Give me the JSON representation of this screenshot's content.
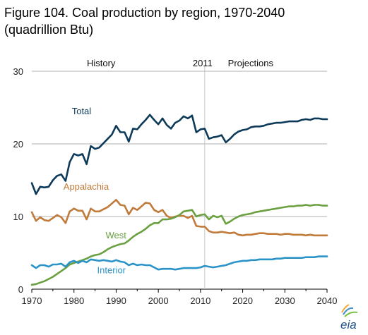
{
  "title_line1": "Figure 104. Coal production by region, 1970-2040",
  "title_line2": "(quadrillion Btu)",
  "logo_text": "eia",
  "colors": {
    "total": "#0e3a5a",
    "appalachia": "#c07a3a",
    "west": "#6aa040",
    "interior": "#2a93c8",
    "axis": "#000000",
    "grid": "#b0b0b0",
    "divider": "#c8c8c8"
  },
  "chart_data": {
    "type": "line",
    "title": "Figure 104. Coal production by region, 1970-2040",
    "xlabel": "",
    "ylabel": "",
    "xlim": [
      1970,
      2040
    ],
    "ylim": [
      0,
      30
    ],
    "xticks": [
      1970,
      1980,
      1990,
      2000,
      2010,
      2020,
      2030,
      2040
    ],
    "yticks": [
      0,
      10,
      20,
      30
    ],
    "grid": "horizontal",
    "annotations": {
      "history": "History",
      "divider_year": "2011",
      "projections": "Projections",
      "divider_x": 2011
    },
    "series": [
      {
        "name": "Total",
        "key": "total",
        "label_pos": [
          1979.5,
          24.1
        ],
        "x": [
          1970,
          1971,
          1972,
          1973,
          1974,
          1975,
          1976,
          1977,
          1978,
          1979,
          1980,
          1981,
          1982,
          1983,
          1984,
          1985,
          1986,
          1987,
          1988,
          1989,
          1990,
          1991,
          1992,
          1993,
          1994,
          1995,
          1996,
          1997,
          1998,
          1999,
          2000,
          2001,
          2002,
          2003,
          2004,
          2005,
          2006,
          2007,
          2008,
          2009,
          2010,
          2011,
          2012,
          2013,
          2014,
          2015,
          2016,
          2017,
          2018,
          2019,
          2020,
          2021,
          2022,
          2023,
          2024,
          2025,
          2026,
          2027,
          2028,
          2029,
          2030,
          2031,
          2032,
          2033,
          2034,
          2035,
          2036,
          2037,
          2038,
          2039,
          2040
        ],
        "values": [
          14.6,
          13.1,
          14.1,
          14.0,
          14.1,
          15.0,
          15.6,
          15.8,
          14.9,
          17.5,
          18.6,
          18.4,
          18.6,
          17.2,
          19.7,
          19.3,
          19.5,
          20.1,
          20.7,
          21.3,
          22.5,
          21.6,
          21.6,
          20.3,
          22.1,
          22.0,
          22.7,
          23.3,
          24.0,
          23.3,
          22.7,
          23.5,
          22.6,
          22.1,
          22.9,
          23.2,
          23.8,
          23.5,
          23.9,
          21.6,
          22.0,
          22.1,
          20.7,
          20.9,
          21.0,
          21.2,
          20.2,
          20.7,
          21.3,
          21.7,
          21.9,
          22.0,
          22.3,
          22.4,
          22.4,
          22.5,
          22.7,
          22.8,
          22.9,
          22.9,
          23.0,
          23.1,
          23.1,
          23.1,
          23.3,
          23.4,
          23.3,
          23.5,
          23.5,
          23.4,
          23.4
        ]
      },
      {
        "name": "Appalachia",
        "key": "appalachia",
        "label_pos": [
          1977.5,
          13.7
        ],
        "x": [
          1970,
          1971,
          1972,
          1973,
          1974,
          1975,
          1976,
          1977,
          1978,
          1979,
          1980,
          1981,
          1982,
          1983,
          1984,
          1985,
          1986,
          1987,
          1988,
          1989,
          1990,
          1991,
          1992,
          1993,
          1994,
          1995,
          1996,
          1997,
          1998,
          1999,
          2000,
          2001,
          2002,
          2003,
          2004,
          2005,
          2006,
          2007,
          2008,
          2009,
          2010,
          2011,
          2012,
          2013,
          2014,
          2015,
          2016,
          2017,
          2018,
          2019,
          2020,
          2021,
          2022,
          2023,
          2024,
          2025,
          2026,
          2027,
          2028,
          2029,
          2030,
          2031,
          2032,
          2033,
          2034,
          2035,
          2036,
          2037,
          2038,
          2039,
          2040
        ],
        "values": [
          10.6,
          9.4,
          9.9,
          9.5,
          9.4,
          9.8,
          10.2,
          9.9,
          9.1,
          10.7,
          11.1,
          10.8,
          10.8,
          9.6,
          11.1,
          10.7,
          10.7,
          11.0,
          11.3,
          11.8,
          12.3,
          11.6,
          11.5,
          10.3,
          11.2,
          10.9,
          11.4,
          11.9,
          11.8,
          10.9,
          10.6,
          10.9,
          10.1,
          9.8,
          10.0,
          10.1,
          10.1,
          9.8,
          10.1,
          8.7,
          8.6,
          8.6,
          8.0,
          7.8,
          7.8,
          7.9,
          7.8,
          7.7,
          7.8,
          7.5,
          7.4,
          7.5,
          7.5,
          7.6,
          7.7,
          7.7,
          7.6,
          7.6,
          7.6,
          7.5,
          7.6,
          7.6,
          7.5,
          7.5,
          7.5,
          7.4,
          7.5,
          7.4,
          7.4,
          7.4,
          7.4
        ]
      },
      {
        "name": "West",
        "key": "west",
        "label_pos": [
          1987.5,
          7.0
        ],
        "x": [
          1970,
          1971,
          1972,
          1973,
          1974,
          1975,
          1976,
          1977,
          1978,
          1979,
          1980,
          1981,
          1982,
          1983,
          1984,
          1985,
          1986,
          1987,
          1988,
          1989,
          1990,
          1991,
          1992,
          1993,
          1994,
          1995,
          1996,
          1997,
          1998,
          1999,
          2000,
          2001,
          2002,
          2003,
          2004,
          2005,
          2006,
          2007,
          2008,
          2009,
          2010,
          2011,
          2012,
          2013,
          2014,
          2015,
          2016,
          2017,
          2018,
          2019,
          2020,
          2021,
          2022,
          2023,
          2024,
          2025,
          2026,
          2027,
          2028,
          2029,
          2030,
          2031,
          2032,
          2033,
          2034,
          2035,
          2036,
          2037,
          2038,
          2039,
          2040
        ],
        "values": [
          0.6,
          0.7,
          0.9,
          1.1,
          1.4,
          1.7,
          2.1,
          2.5,
          2.9,
          3.4,
          3.6,
          3.8,
          4.0,
          4.2,
          4.5,
          4.7,
          4.8,
          5.1,
          5.5,
          5.8,
          6.0,
          6.2,
          6.3,
          6.7,
          7.2,
          7.6,
          7.9,
          8.3,
          8.8,
          9.1,
          9.1,
          9.6,
          9.6,
          9.7,
          9.9,
          10.2,
          10.7,
          10.8,
          10.9,
          10.0,
          10.2,
          10.3,
          9.6,
          10.1,
          9.9,
          10.1,
          9.0,
          9.3,
          9.7,
          10.0,
          10.2,
          10.3,
          10.4,
          10.6,
          10.7,
          10.8,
          10.9,
          11.0,
          11.1,
          11.2,
          11.3,
          11.4,
          11.4,
          11.5,
          11.5,
          11.6,
          11.5,
          11.6,
          11.6,
          11.5,
          11.5
        ]
      },
      {
        "name": "Interior",
        "key": "interior",
        "label_pos": [
          1985.5,
          2.2
        ],
        "x": [
          1970,
          1971,
          1972,
          1973,
          1974,
          1975,
          1976,
          1977,
          1978,
          1979,
          1980,
          1981,
          1982,
          1983,
          1984,
          1985,
          1986,
          1987,
          1988,
          1989,
          1990,
          1991,
          1992,
          1993,
          1994,
          1995,
          1996,
          1997,
          1998,
          1999,
          2000,
          2001,
          2002,
          2003,
          2004,
          2005,
          2006,
          2007,
          2008,
          2009,
          2010,
          2011,
          2012,
          2013,
          2014,
          2015,
          2016,
          2017,
          2018,
          2019,
          2020,
          2021,
          2022,
          2023,
          2024,
          2025,
          2026,
          2027,
          2028,
          2029,
          2030,
          2031,
          2032,
          2033,
          2034,
          2035,
          2036,
          2037,
          2038,
          2039,
          2040
        ],
        "values": [
          3.3,
          2.9,
          3.3,
          3.3,
          3.1,
          3.4,
          3.4,
          3.5,
          3.1,
          3.7,
          3.9,
          3.6,
          3.9,
          3.7,
          4.1,
          4.0,
          3.9,
          4.0,
          3.9,
          3.8,
          4.0,
          3.8,
          3.7,
          3.3,
          3.5,
          3.3,
          3.4,
          3.3,
          3.3,
          3.0,
          2.7,
          2.8,
          2.8,
          2.8,
          2.7,
          2.8,
          2.9,
          2.9,
          2.9,
          2.9,
          3.0,
          3.2,
          3.1,
          3.0,
          3.1,
          3.2,
          3.3,
          3.5,
          3.7,
          3.8,
          3.9,
          3.9,
          4.0,
          4.0,
          4.1,
          4.1,
          4.1,
          4.1,
          4.2,
          4.2,
          4.3,
          4.3,
          4.3,
          4.3,
          4.3,
          4.4,
          4.4,
          4.4,
          4.5,
          4.5,
          4.5
        ]
      }
    ]
  }
}
